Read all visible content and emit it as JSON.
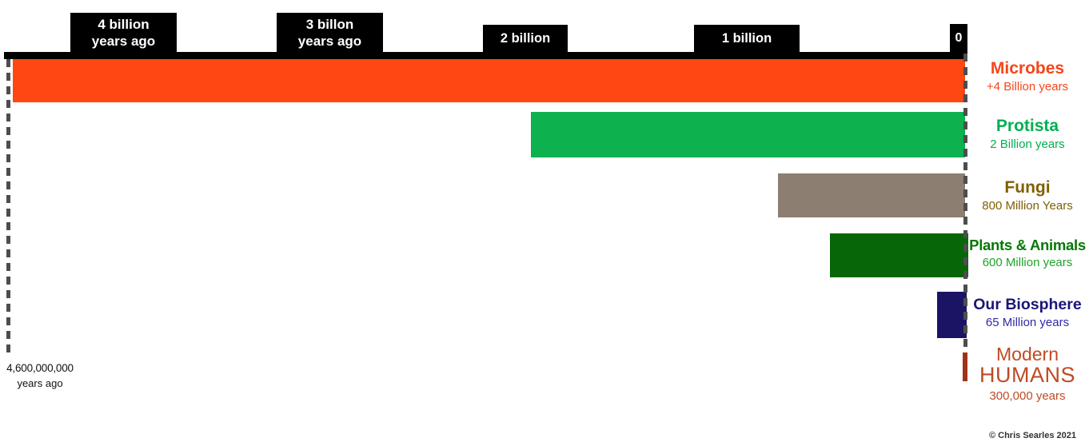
{
  "chart_data": {
    "type": "bar",
    "subtype": "horizontal-timeline",
    "x_axis": {
      "unit": "years ago",
      "range_years_ago": [
        4600000000,
        0
      ],
      "tick_labels": [
        "4 billion years ago",
        "3 billon years ago",
        "2 billion",
        "1 billion",
        "0"
      ],
      "origin_label": "4,600,000,000 years ago",
      "grid": false
    },
    "series": [
      {
        "name": "Microbes",
        "duration_label": "+4 Billion years",
        "start_years_ago": 4600000000,
        "end_years_ago": 0,
        "bar_color": "#FF4713",
        "title_color": "#F4461A",
        "subtitle_color": "#F4461A"
      },
      {
        "name": "Protista",
        "duration_label": "2 Billion years",
        "start_years_ago": 2000000000,
        "end_years_ago": 0,
        "bar_color": "#0DB14E",
        "title_color": "#00B050",
        "subtitle_color": "#00B050"
      },
      {
        "name": "Fungi",
        "duration_label": "800 Million Years",
        "start_years_ago": 800000000,
        "end_years_ago": 0,
        "bar_color": "#8C7E70",
        "title_color": "#7F6000",
        "subtitle_color": "#7F6000"
      },
      {
        "name": "Plants & Animals",
        "duration_label": "600 Million years",
        "start_years_ago": 600000000,
        "end_years_ago": 0,
        "bar_color": "#076607",
        "title_color": "#067806",
        "subtitle_color": "#1FA32B"
      },
      {
        "name": "Our Biosphere",
        "duration_label": "65 Million years",
        "start_years_ago": 65000000,
        "end_years_ago": 0,
        "bar_color": "#1B1464",
        "title_color": "#1B1577",
        "subtitle_color": "#2E2AA8"
      },
      {
        "name": "Modern HUMANS",
        "duration_label": "300,000 years",
        "start_years_ago": 300000,
        "end_years_ago": 0,
        "bar_color": "#A0321A",
        "title_color": "#BE4B24",
        "subtitle_color": "#BE4B24",
        "display_lines": [
          "Modern",
          "HUMANS"
        ]
      }
    ],
    "legend_position": "right",
    "credit": "© Chris Searles 2021"
  },
  "axis": {
    "ticks": [
      {
        "line1": "4 billion",
        "line2": "years ago"
      },
      {
        "line1": "3 billon",
        "line2": "years ago"
      },
      {
        "line1": "2 billion",
        "line2": ""
      },
      {
        "line1": "1 billion",
        "line2": ""
      },
      {
        "line1": "0",
        "line2": ""
      }
    ]
  },
  "origin": {
    "line1": "4,600,000,000",
    "line2": "years ago"
  },
  "colors": {
    "axis_box_bg": "#000000",
    "axis_box_text": "#ffffff",
    "dashed_line": "#4d4d4d",
    "background": "#ffffff",
    "credit_text": "#333333"
  }
}
